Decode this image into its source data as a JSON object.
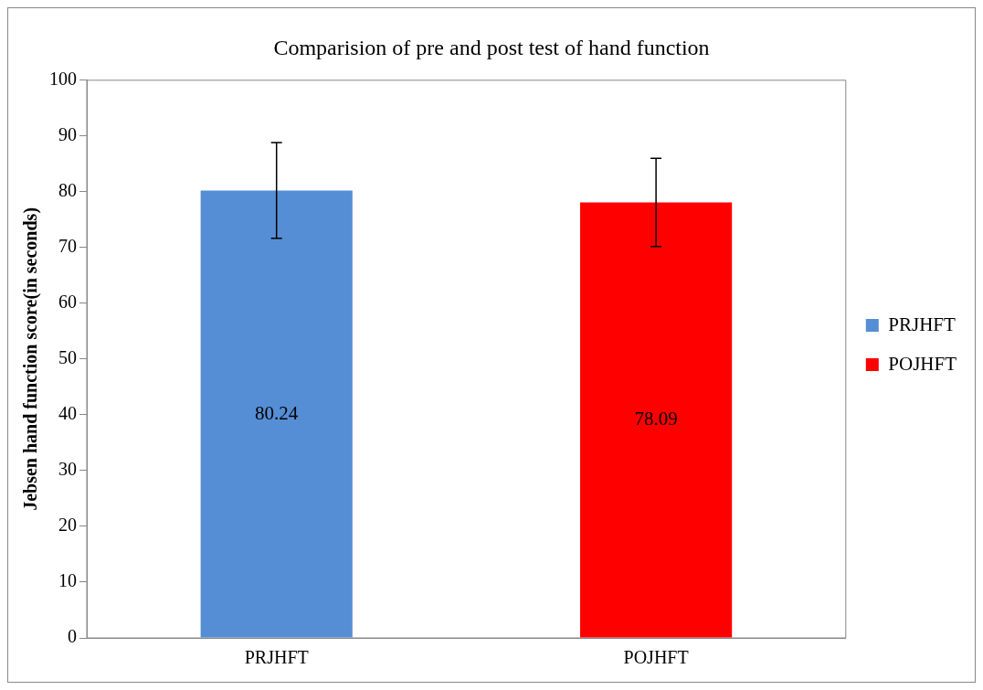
{
  "chart_data": {
    "type": "bar",
    "title": "Comparision of pre and post test of hand function",
    "ylabel": "Jebsen hand function score(in seconds)",
    "categories": [
      "PRJHFT",
      "POJHFT"
    ],
    "series": [
      {
        "name": "PRJHFT",
        "color": "#558ed5",
        "values": [
          80.24,
          null
        ],
        "errors": [
          8.6,
          null
        ]
      },
      {
        "name": "POJHFT",
        "color": "#ff0000",
        "values": [
          null,
          78.09
        ],
        "errors": [
          null,
          7.9
        ]
      }
    ],
    "data_labels": true,
    "ylim": [
      0,
      100
    ],
    "yticks": [
      0,
      10,
      20,
      30,
      40,
      50,
      60,
      70,
      80,
      90,
      100
    ],
    "grid": false,
    "legend": "right"
  }
}
